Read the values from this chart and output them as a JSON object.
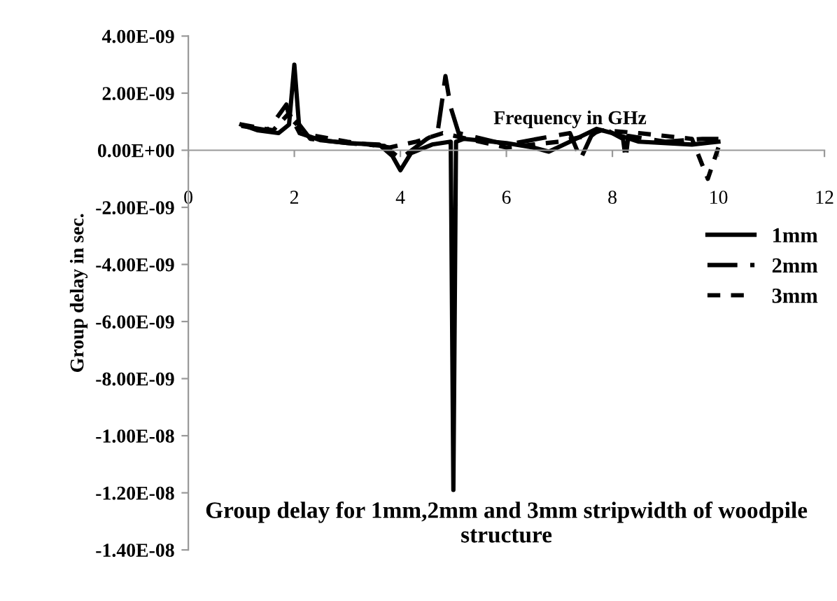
{
  "chart_data": {
    "type": "line",
    "title": "Group delay for 1mm,2mm and 3mm stripwidth of woodpile structure",
    "xlabel": "Frequency in GHz",
    "ylabel": "Group delay in sec.",
    "xlim": [
      0,
      12
    ],
    "xticks": [
      0,
      2,
      4,
      6,
      8,
      10,
      12
    ],
    "ylim": [
      -1.4e-08,
      4e-09
    ],
    "yticks": [
      {
        "value": 4e-09,
        "label": "4.00E-09"
      },
      {
        "value": 2e-09,
        "label": "2.00E-09"
      },
      {
        "value": 0,
        "label": "0.00E+00"
      },
      {
        "value": -2e-09,
        "label": "-2.00E-09"
      },
      {
        "value": -4e-09,
        "label": "-4.00E-09"
      },
      {
        "value": -6e-09,
        "label": "-6.00E-09"
      },
      {
        "value": -8e-09,
        "label": "-8.00E-09"
      },
      {
        "value": -1e-08,
        "label": "-1.00E-08"
      },
      {
        "value": -1.2e-08,
        "label": "-1.20E-08"
      },
      {
        "value": -1.4e-08,
        "label": "-1.40E-08"
      }
    ],
    "grid": false,
    "legend": "right",
    "marker": "none",
    "series": [
      {
        "name": "1mm",
        "color": "#000000",
        "line_style": "solid",
        "x": [
          1,
          1.3,
          1.7,
          1.9,
          2.0,
          2.1,
          2.5,
          3,
          3.6,
          3.85,
          4.0,
          4.2,
          4.6,
          4.95,
          5.0,
          5.05,
          5.2,
          6,
          6.5,
          6.8,
          7.2,
          7.7,
          8,
          8.5,
          9.5,
          10
        ],
        "values": [
          9e-10,
          7e-10,
          6e-10,
          9e-10,
          3e-09,
          6e-10,
          3.5e-10,
          2.5e-10,
          2e-10,
          -2e-10,
          -7e-10,
          -1e-10,
          2e-10,
          3e-10,
          -1.19e-08,
          3e-10,
          4e-10,
          2.5e-10,
          1e-10,
          -5e-11,
          3e-10,
          7.5e-10,
          6e-10,
          3e-10,
          2e-10,
          3e-10
        ]
      },
      {
        "name": "2mm",
        "color": "#000000",
        "line_style": "dashed",
        "x": [
          1,
          1.5,
          1.85,
          1.95,
          2.05,
          2.3,
          3,
          3.7,
          4.0,
          4.5,
          4.7,
          4.8,
          4.85,
          4.95,
          5.1,
          6,
          7.2,
          7.4,
          7.6,
          7.8,
          8.2,
          8.25,
          8.3,
          9,
          9.7,
          10
        ],
        "values": [
          8.5e-10,
          7e-10,
          1.6e-09,
          8e-10,
          1e-09,
          4e-10,
          2.5e-10,
          1.5e-10,
          -3e-10,
          4e-10,
          6e-10,
          1.9e-09,
          2.6e-09,
          1.5e-09,
          6e-10,
          2e-10,
          6e-10,
          -3e-10,
          5e-10,
          8e-10,
          4e-10,
          -3e-10,
          5e-10,
          3e-10,
          4e-10,
          4e-10
        ]
      },
      {
        "name": "3mm",
        "color": "#000000",
        "line_style": "dotted",
        "x": [
          1,
          1.6,
          1.9,
          2.1,
          3,
          3.8,
          4.3,
          4.8,
          5.5,
          6,
          7,
          7.5,
          7.8,
          8.5,
          9.5,
          9.8,
          10
        ],
        "values": [
          9e-10,
          7e-10,
          1.3e-09,
          6e-10,
          3e-10,
          1e-10,
          3e-10,
          6e-10,
          3e-10,
          1e-10,
          3e-10,
          5e-10,
          7e-10,
          6e-10,
          4e-10,
          -1e-09,
          1e-10
        ]
      }
    ]
  }
}
